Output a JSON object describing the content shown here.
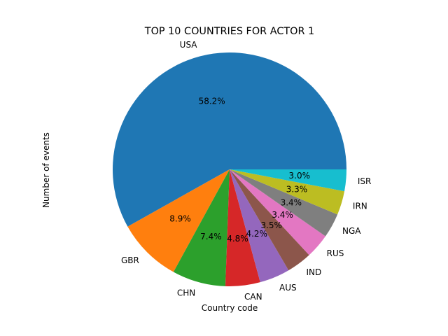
{
  "chart_data": {
    "type": "pie",
    "title": "TOP 10 COUNTRIES FOR ACTOR 1",
    "xlabel": "Country code",
    "ylabel": "Number of events",
    "labels": [
      "USA",
      "GBR",
      "CHN",
      "CAN",
      "AUS",
      "IND",
      "RUS",
      "NGA",
      "IRN",
      "ISR"
    ],
    "values": [
      58.2,
      8.9,
      7.4,
      4.8,
      4.2,
      3.5,
      3.4,
      3.4,
      3.3,
      3.0
    ],
    "percent_labels": [
      "58.2%",
      "8.9%",
      "7.4%",
      "4.8%",
      "4.2%",
      "3.5%",
      "3.4%",
      "3.4%",
      "3.3%",
      "3.0%"
    ],
    "colors": [
      "#1f77b4",
      "#ff7f0e",
      "#2ca02c",
      "#d62728",
      "#9467bd",
      "#8c564b",
      "#e377c2",
      "#7f7f7f",
      "#bcbd22",
      "#17becf"
    ],
    "start_angle_deg": 0,
    "direction": "counterclockwise",
    "legend": "none",
    "grid": false
  }
}
